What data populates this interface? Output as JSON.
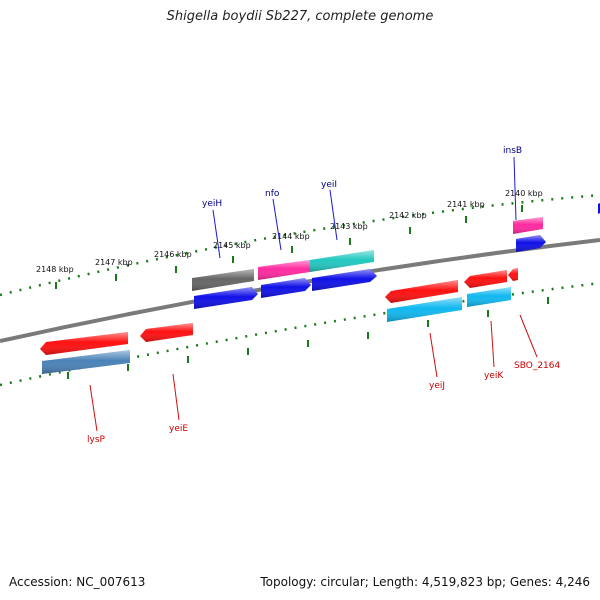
{
  "title": "Shigella boydii Sb227, complete genome",
  "footer": {
    "accession": "Accession: NC_007613",
    "summary": "Topology: circular; Length: 4,519,823 bp; Genes: 4,246"
  },
  "colors": {
    "backbone": "#808080",
    "tick": "#1a7a1a",
    "forward_label": "#00008b",
    "reverse_label": "#cc0000",
    "red_feature": "#ff1010",
    "blue_feature": "#1010e8",
    "pink_feature": "#ff2aa0",
    "teal_feature": "#22c8c0",
    "cyan_feature": "#10b8f0",
    "gray_feature": "#666666",
    "steel_feature": "#4a82b8"
  },
  "scale_labels": [
    "2148 kbp",
    "2147 kbp",
    "2146 kbp",
    "2145 kbp",
    "2144 kbp",
    "2143 kbp",
    "2142 kbp",
    "2141 kbp",
    "2140 kbp"
  ],
  "gene_labels": {
    "forward": [
      "yeiH",
      "nfo",
      "yeiI",
      "insB"
    ],
    "reverse": [
      "lysP",
      "yeiE",
      "yeiJ",
      "yeiK",
      "SBO_2164"
    ]
  }
}
